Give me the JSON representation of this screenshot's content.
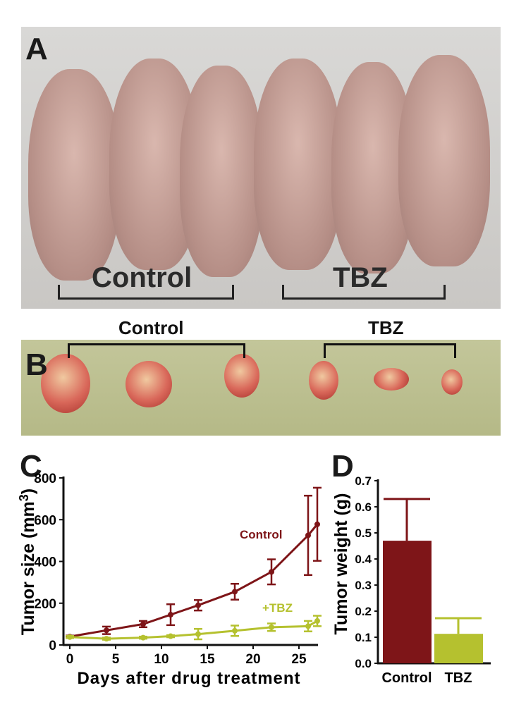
{
  "panel_a": {
    "letter": "A",
    "label_control": "Control",
    "label_tbz": "TBZ"
  },
  "panel_b": {
    "letter": "B",
    "label_control": "Control",
    "label_tbz": "TBZ"
  },
  "colors": {
    "control": "#7e1518",
    "tbz": "#b5c12f",
    "arrow": "#e8403a"
  },
  "chart_data": [
    {
      "panel": "C",
      "type": "line",
      "title": "",
      "xlabel": "Days after drug treatment",
      "ylabel": "Tumor size (mm3)",
      "xlim": [
        0,
        27
      ],
      "ylim": [
        0,
        800
      ],
      "xticks": [
        0,
        5,
        10,
        15,
        20,
        25
      ],
      "yticks": [
        0,
        200,
        400,
        600,
        800
      ],
      "x": [
        0,
        4,
        8,
        11,
        14,
        18,
        22,
        26,
        27
      ],
      "series": [
        {
          "name": "Control",
          "values": [
            40,
            70,
            100,
            145,
            190,
            255,
            350,
            525,
            578
          ],
          "errors": [
            5,
            18,
            15,
            50,
            25,
            38,
            60,
            190,
            175
          ]
        },
        {
          "name": "+TBZ",
          "values": [
            38,
            30,
            35,
            42,
            52,
            68,
            85,
            90,
            115
          ],
          "errors": [
            5,
            5,
            5,
            5,
            25,
            25,
            18,
            25,
            25
          ]
        }
      ]
    },
    {
      "panel": "D",
      "type": "bar",
      "title": "",
      "xlabel": "",
      "ylabel": "Tumor weight (g)",
      "ylim": [
        0,
        0.7
      ],
      "yticks": [
        "0.0",
        "0.1",
        "0.2",
        "0.3",
        "0.4",
        "0.5",
        "0.6",
        "0.7"
      ],
      "categories": [
        "Control",
        "TBZ"
      ],
      "values": [
        0.47,
        0.113
      ],
      "errors": [
        0.16,
        0.06
      ]
    }
  ]
}
